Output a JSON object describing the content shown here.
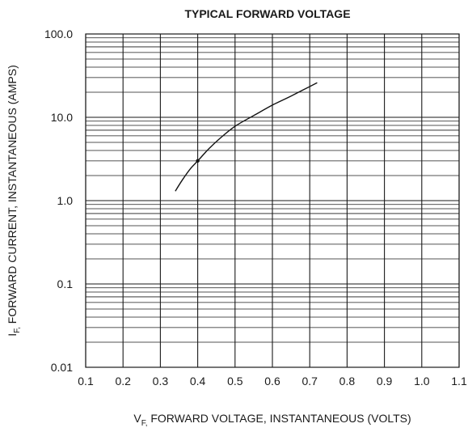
{
  "chart_data": {
    "type": "line",
    "title": "TYPICAL FORWARD VOLTAGE",
    "xlabel": {
      "prefix": "V",
      "subscript": "F,",
      "text": " FORWARD VOLTAGE, INSTANTANEOUS (VOLTS)"
    },
    "ylabel": {
      "prefix": "I",
      "subscript": "F,",
      "text": " FORWARD CURRENT, INSTANTANEOUS (AMPS)"
    },
    "xlim": [
      0.1,
      1.1
    ],
    "ylim": [
      0.01,
      100
    ],
    "yscale": "log",
    "grid": true,
    "x_ticks": [
      "0.1",
      "0.2",
      "0.3",
      "0.4",
      "0.5",
      "0.6",
      "0.7",
      "0.8",
      "0.9",
      "1.0",
      "1.1"
    ],
    "y_ticks": [
      {
        "value": 0.01,
        "label": "0.01"
      },
      {
        "value": 0.1,
        "label": "0.1"
      },
      {
        "value": 1,
        "label": "1.0"
      },
      {
        "value": 10,
        "label": "10.0"
      },
      {
        "value": 100,
        "label": "100.0"
      }
    ],
    "series": [
      {
        "x": [
          0.34,
          0.36,
          0.38,
          0.4,
          0.43,
          0.46,
          0.5,
          0.55,
          0.6,
          0.65,
          0.72
        ],
        "y": [
          1.3,
          1.8,
          2.4,
          3.0,
          4.2,
          5.6,
          7.8,
          10.5,
          14.0,
          18.0,
          26.0
        ],
        "color": "#111111"
      }
    ],
    "markers": [
      {
        "x": 0.4,
        "y": 3.0
      }
    ]
  }
}
